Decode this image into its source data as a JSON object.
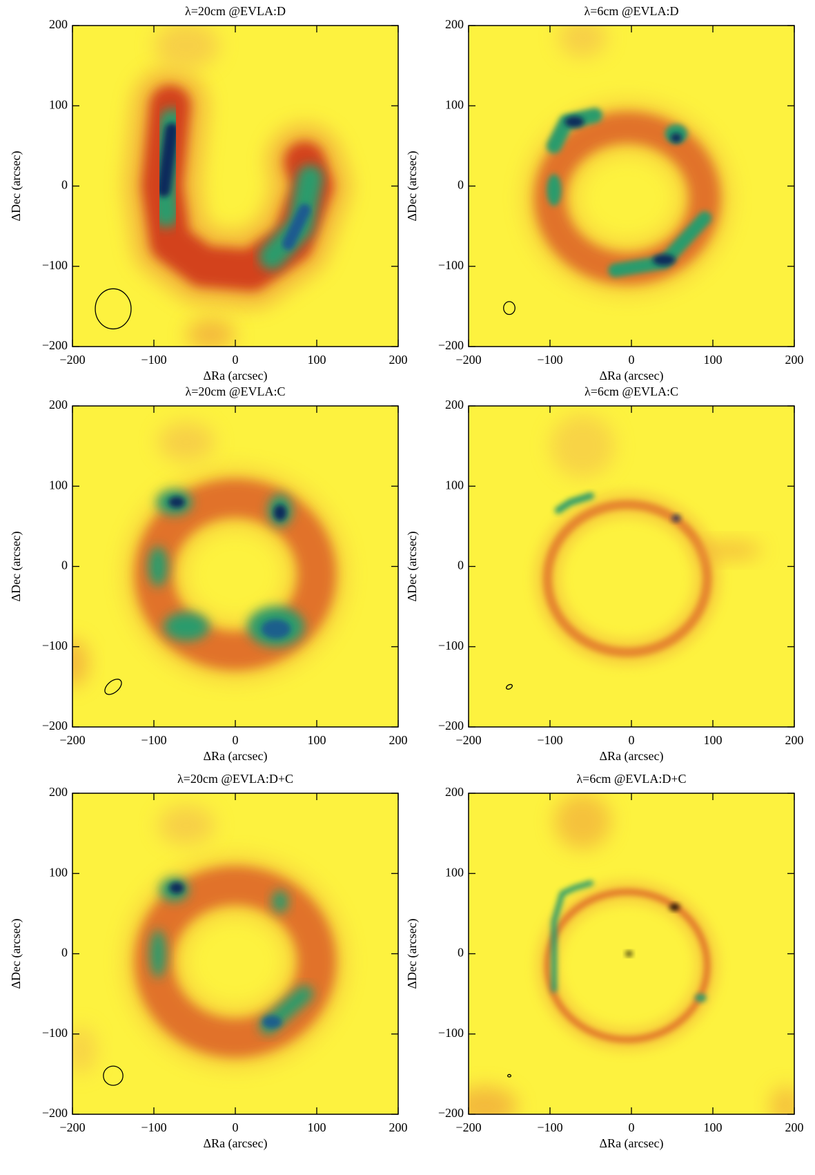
{
  "chart_data": [
    {
      "type": "image",
      "title": "λ=20cm  @EVLA:D",
      "xlabel": "ΔRa (arcsec)",
      "ylabel": "ΔDec (arcsec)",
      "xlim": [
        -200,
        200
      ],
      "ylim": [
        -200,
        200
      ],
      "xticks": [
        {
          "value": -200,
          "label": "−200"
        },
        {
          "value": -100,
          "label": "−100"
        },
        0,
        100,
        200
      ],
      "yticks": [
        {
          "value": -200,
          "label": "−200"
        },
        {
          "value": -100,
          "label": "−100"
        },
        0,
        100,
        200
      ],
      "beam": {
        "x": -150,
        "y": -153,
        "major": 22,
        "minor": 25,
        "angle": 0
      }
    },
    {
      "type": "image",
      "title": "λ=6cm  @EVLA:D",
      "xlabel": "ΔRa (arcsec)",
      "ylabel": "ΔDec (arcsec)",
      "xlim": [
        -200,
        200
      ],
      "ylim": [
        -200,
        200
      ],
      "xticks": [
        {
          "value": -200,
          "label": "−200"
        },
        {
          "value": -100,
          "label": "−100"
        },
        0,
        100,
        200
      ],
      "yticks": [
        {
          "value": -200,
          "label": "−200"
        },
        {
          "value": -100,
          "label": "−100"
        },
        0,
        100,
        200
      ],
      "beam": {
        "x": -150,
        "y": -152,
        "major": 7,
        "minor": 8,
        "angle": 0
      }
    },
    {
      "type": "image",
      "title": "λ=20cm  @EVLA:C",
      "xlabel": "ΔRa (arcsec)",
      "ylabel": "ΔDec (arcsec)",
      "xlim": [
        -200,
        200
      ],
      "ylim": [
        -200,
        200
      ],
      "xticks": [
        {
          "value": -200,
          "label": "−200"
        },
        {
          "value": -100,
          "label": "−100"
        },
        0,
        100,
        200
      ],
      "yticks": [
        {
          "value": -200,
          "label": "−200"
        },
        {
          "value": -100,
          "label": "−100"
        },
        0,
        100,
        200
      ],
      "beam": {
        "x": -150,
        "y": -150,
        "major": 12,
        "minor": 7,
        "angle": 40
      }
    },
    {
      "type": "image",
      "title": "λ=6cm  @EVLA:C",
      "xlabel": "ΔRa (arcsec)",
      "ylabel": "ΔDec (arcsec)",
      "xlim": [
        -200,
        200
      ],
      "ylim": [
        -200,
        200
      ],
      "xticks": [
        {
          "value": -200,
          "label": "−200"
        },
        {
          "value": -100,
          "label": "−100"
        },
        0,
        100,
        200
      ],
      "yticks": [
        {
          "value": -200,
          "label": "−200"
        },
        {
          "value": -100,
          "label": "−100"
        },
        0,
        100,
        200
      ],
      "beam": {
        "x": -150,
        "y": -150,
        "major": 4,
        "minor": 2.5,
        "angle": 30
      }
    },
    {
      "type": "image",
      "title": "λ=20cm  @EVLA:D+C",
      "xlabel": "ΔRa (arcsec)",
      "ylabel": "ΔDec (arcsec)",
      "xlim": [
        -200,
        200
      ],
      "ylim": [
        -200,
        200
      ],
      "xticks": [
        {
          "value": -200,
          "label": "−200"
        },
        {
          "value": -100,
          "label": "−100"
        },
        0,
        100,
        200
      ],
      "yticks": [
        {
          "value": -200,
          "label": "−200"
        },
        {
          "value": -100,
          "label": "−100"
        },
        0,
        100,
        200
      ],
      "beam": {
        "x": -150,
        "y": -152,
        "major": 12,
        "minor": 12,
        "angle": 0
      }
    },
    {
      "type": "image",
      "title": "λ=6cm  @EVLA:D+C",
      "xlabel": "ΔRa (arcsec)",
      "ylabel": "ΔDec (arcsec)",
      "xlim": [
        -200,
        200
      ],
      "ylim": [
        -200,
        200
      ],
      "xticks": [
        {
          "value": -200,
          "label": "−200"
        },
        {
          "value": -100,
          "label": "−100"
        },
        0,
        100,
        200
      ],
      "yticks": [
        {
          "value": -200,
          "label": "−200"
        },
        {
          "value": -100,
          "label": "−100"
        },
        0,
        100,
        200
      ],
      "beam": {
        "x": -150,
        "y": -152,
        "major": 2,
        "minor": 1.5,
        "angle": 0
      }
    }
  ]
}
